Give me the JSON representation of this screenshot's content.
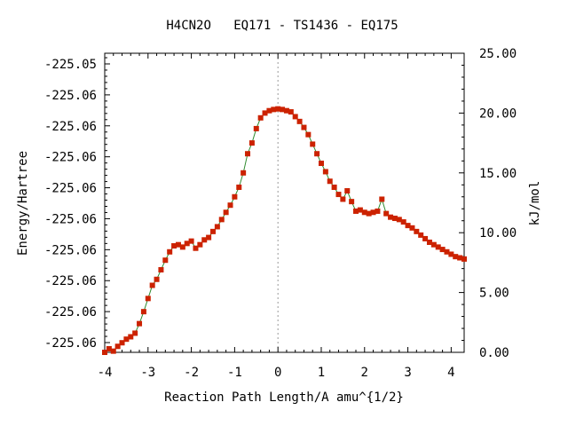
{
  "chart_data": {
    "type": "line",
    "title": "H4CN2O   EQ171 - TS1436 - EQ175",
    "xlabel": "Reaction Path Length/A amu^{1/2}",
    "ylabel_left": "Energy/Hartree",
    "ylabel_right": "kJ/mol",
    "xlim": [
      -4.0,
      4.3
    ],
    "ylim_right": [
      0,
      25
    ],
    "x_ticks": [
      "-4",
      "-3",
      "-2",
      "-1",
      "0",
      "1",
      "2",
      "3",
      "4"
    ],
    "left_tick_labels": [
      "-225.06",
      "-225.06",
      "-225.06",
      "-225.06",
      "-225.06",
      "-225.06",
      "-225.06",
      "-225.06",
      "-225.06",
      "-225.05"
    ],
    "right_tick_labels": [
      "0.00",
      "5.00",
      "10.00",
      "15.00",
      "20.00",
      "25.00"
    ],
    "grid": false,
    "colors": {
      "line": "#2e8b2e",
      "marker": "#cc2200",
      "zero_line": "#9a9a9a"
    },
    "series": [
      {
        "x": [
          -4.0,
          -3.9,
          -3.8,
          -3.7,
          -3.6,
          -3.5,
          -3.4,
          -3.3,
          -3.2,
          -3.1,
          -3.0,
          -2.9,
          -2.8,
          -2.7,
          -2.6,
          -2.5,
          -2.4,
          -2.3,
          -2.2,
          -2.1,
          -2.0,
          -1.9,
          -1.8,
          -1.7,
          -1.6,
          -1.5,
          -1.4,
          -1.3,
          -1.2,
          -1.1,
          -1.0,
          -0.9,
          -0.8,
          -0.7,
          -0.6,
          -0.5,
          -0.4,
          -0.3,
          -0.2,
          -0.1,
          0.0,
          0.1,
          0.2,
          0.3,
          0.4,
          0.5,
          0.6,
          0.7,
          0.8,
          0.9,
          1.0,
          1.1,
          1.2,
          1.3,
          1.4,
          1.5,
          1.6,
          1.7,
          1.8,
          1.9,
          2.0,
          2.1,
          2.2,
          2.3,
          2.4,
          2.5,
          2.6,
          2.7,
          2.8,
          2.9,
          3.0,
          3.1,
          3.2,
          3.3,
          3.4,
          3.5,
          3.6,
          3.7,
          3.8,
          3.9,
          4.0,
          4.1,
          4.2,
          4.3
        ],
        "y": [
          0.0,
          0.3,
          0.1,
          0.5,
          0.8,
          1.1,
          1.3,
          1.6,
          2.4,
          3.4,
          4.5,
          5.6,
          6.1,
          6.9,
          7.7,
          8.4,
          8.9,
          9.0,
          8.8,
          9.1,
          9.3,
          8.7,
          9.0,
          9.4,
          9.6,
          10.1,
          10.5,
          11.1,
          11.7,
          12.3,
          13.0,
          13.8,
          15.0,
          16.6,
          17.5,
          18.7,
          19.6,
          20.0,
          20.2,
          20.3,
          20.35,
          20.3,
          20.2,
          20.1,
          19.7,
          19.3,
          18.8,
          18.2,
          17.4,
          16.6,
          15.8,
          15.1,
          14.3,
          13.8,
          13.2,
          12.8,
          13.5,
          12.6,
          11.8,
          11.9,
          11.7,
          11.6,
          11.7,
          11.8,
          12.8,
          11.6,
          11.3,
          11.2,
          11.1,
          10.9,
          10.6,
          10.4,
          10.1,
          9.8,
          9.5,
          9.2,
          9.0,
          8.8,
          8.6,
          8.4,
          8.2,
          8.0,
          7.9,
          7.8
        ]
      }
    ]
  }
}
